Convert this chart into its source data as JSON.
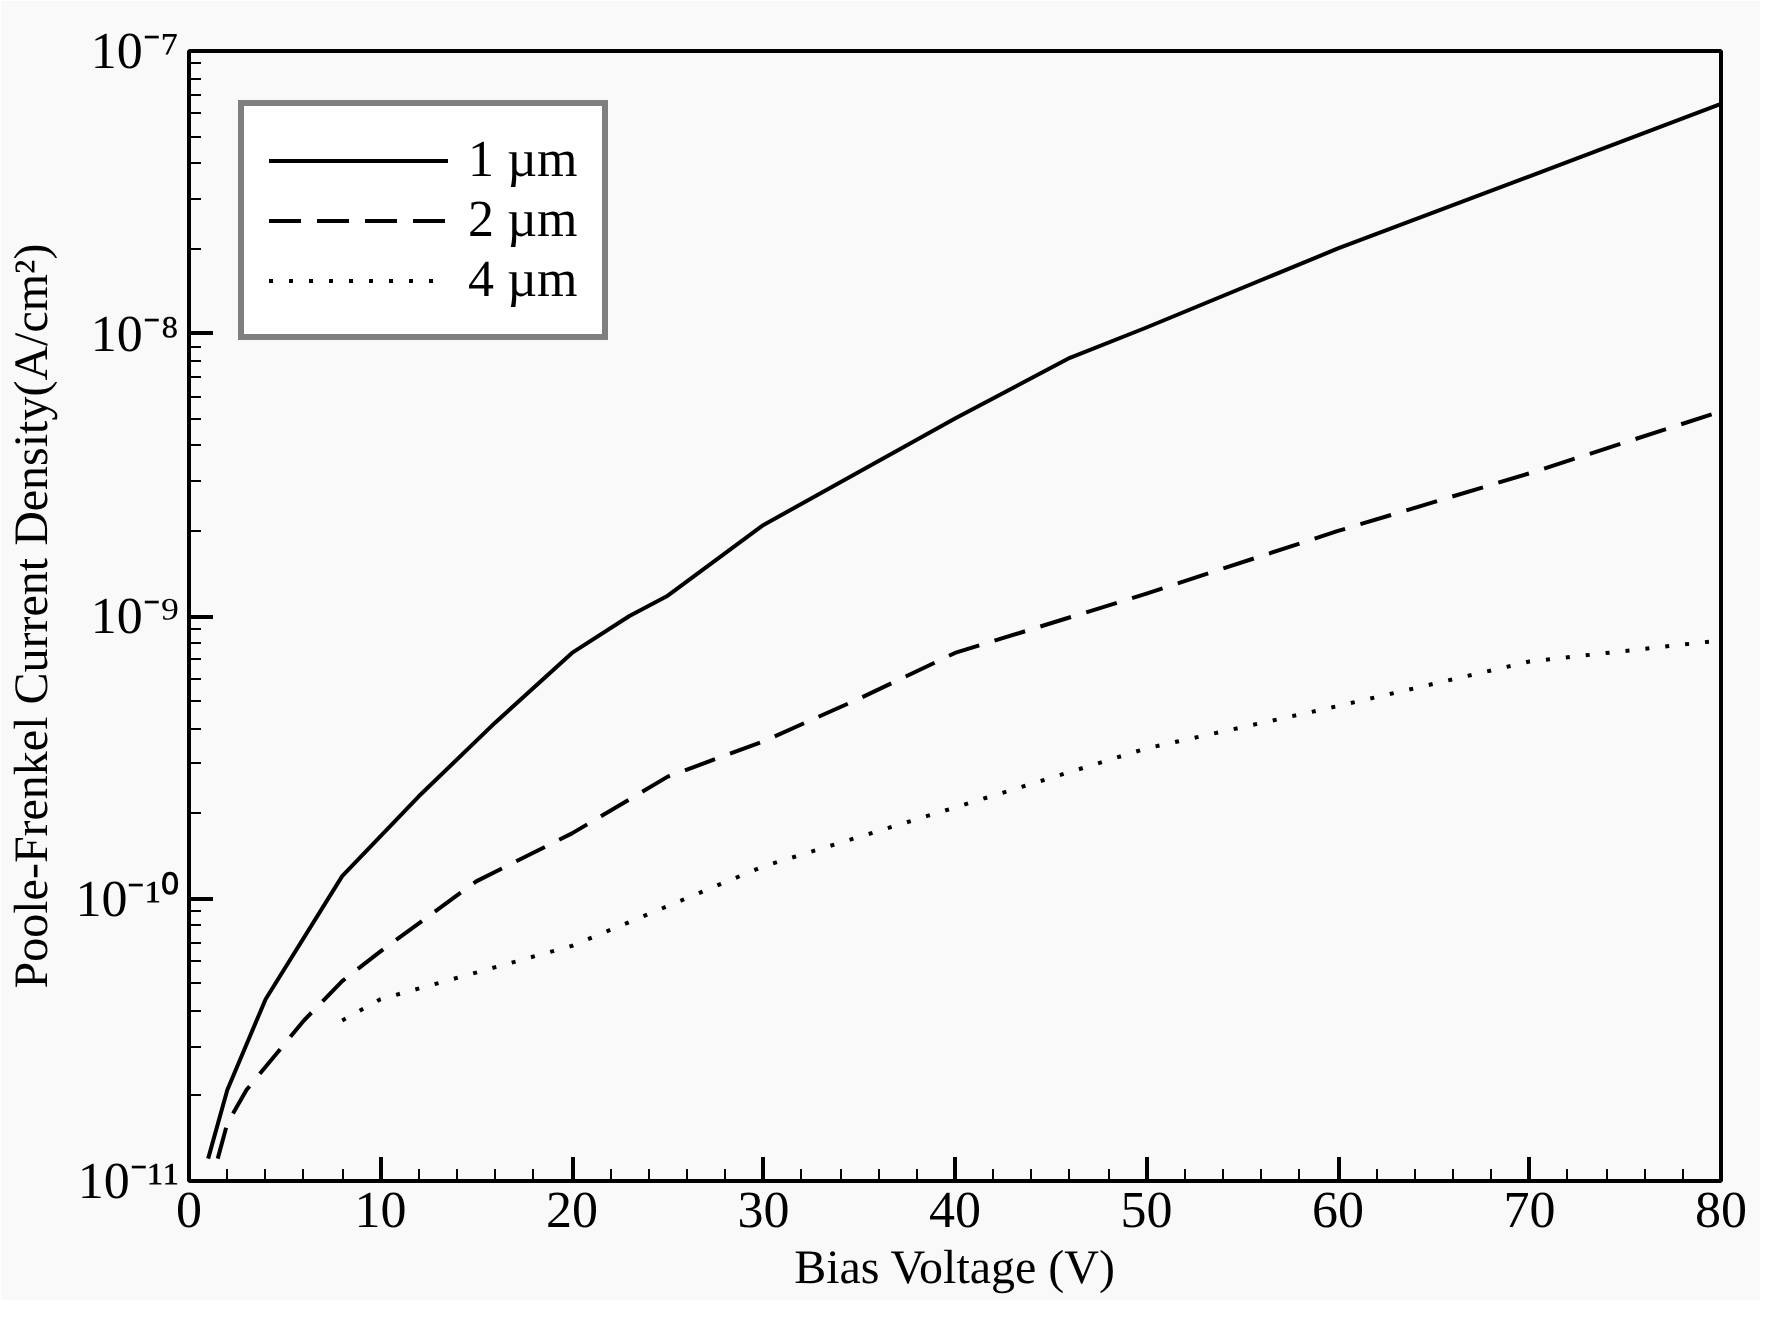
{
  "chart_data": {
    "type": "line",
    "xlabel": "Bias Voltage (V)",
    "ylabel": "Poole-Frenkel Current Density(A/cm²)",
    "log": "y",
    "grid": false,
    "legend": "top left",
    "xlim": [
      0,
      80
    ],
    "xticks": [
      0,
      10,
      20,
      30,
      40,
      50,
      60,
      70,
      80
    ],
    "ylim": [
      1e-11,
      1e-07
    ],
    "yticks": [
      {
        "value": 1e-11,
        "label": "10⁻¹¹"
      },
      {
        "value": 1e-10,
        "label": "10⁻¹⁰"
      },
      {
        "value": 1e-09,
        "label": "10⁻⁹"
      },
      {
        "value": 1e-08,
        "label": "10⁻⁸"
      },
      {
        "value": 1e-07,
        "label": "10⁻⁷"
      }
    ],
    "series": [
      {
        "name": "1 µm",
        "color": "#000000",
        "line_style": "solid",
        "x": [
          1,
          2,
          4,
          8,
          12,
          16,
          20,
          23,
          25,
          30,
          40,
          46,
          50,
          60,
          70,
          80
        ],
        "values": [
          1.2e-11,
          2.1e-11,
          4.4e-11,
          1.2e-10,
          2.3e-10,
          4.2e-10,
          7.4e-10,
          1e-09,
          1.18e-09,
          2.1e-09,
          5e-09,
          8.2e-09,
          1.05e-08,
          2e-08,
          3.6e-08,
          6.5e-08
        ]
      },
      {
        "name": "2 µm",
        "color": "#000000",
        "line_style": "dashed",
        "x": [
          1.5,
          2,
          3,
          6,
          8,
          10,
          15,
          20,
          25,
          30,
          35,
          40,
          50,
          60,
          70,
          80
        ],
        "values": [
          1.2e-11,
          1.6e-11,
          2.1e-11,
          3.7e-11,
          5.1e-11,
          6.5e-11,
          1.15e-10,
          1.7e-10,
          2.7e-10,
          3.6e-10,
          5.1e-10,
          7.4e-10,
          1.2e-09,
          2e-09,
          3.2e-09,
          5.3e-09
        ]
      },
      {
        "name": "4 µm",
        "color": "#000000",
        "line_style": "dotted",
        "x": [
          8,
          10,
          20,
          30,
          40,
          50,
          60,
          70,
          80
        ],
        "values": [
          3.7e-11,
          4.4e-11,
          6.8e-11,
          1.3e-10,
          2.1e-10,
          3.4e-10,
          4.8e-10,
          6.9e-10,
          8.2e-10
        ]
      }
    ]
  }
}
